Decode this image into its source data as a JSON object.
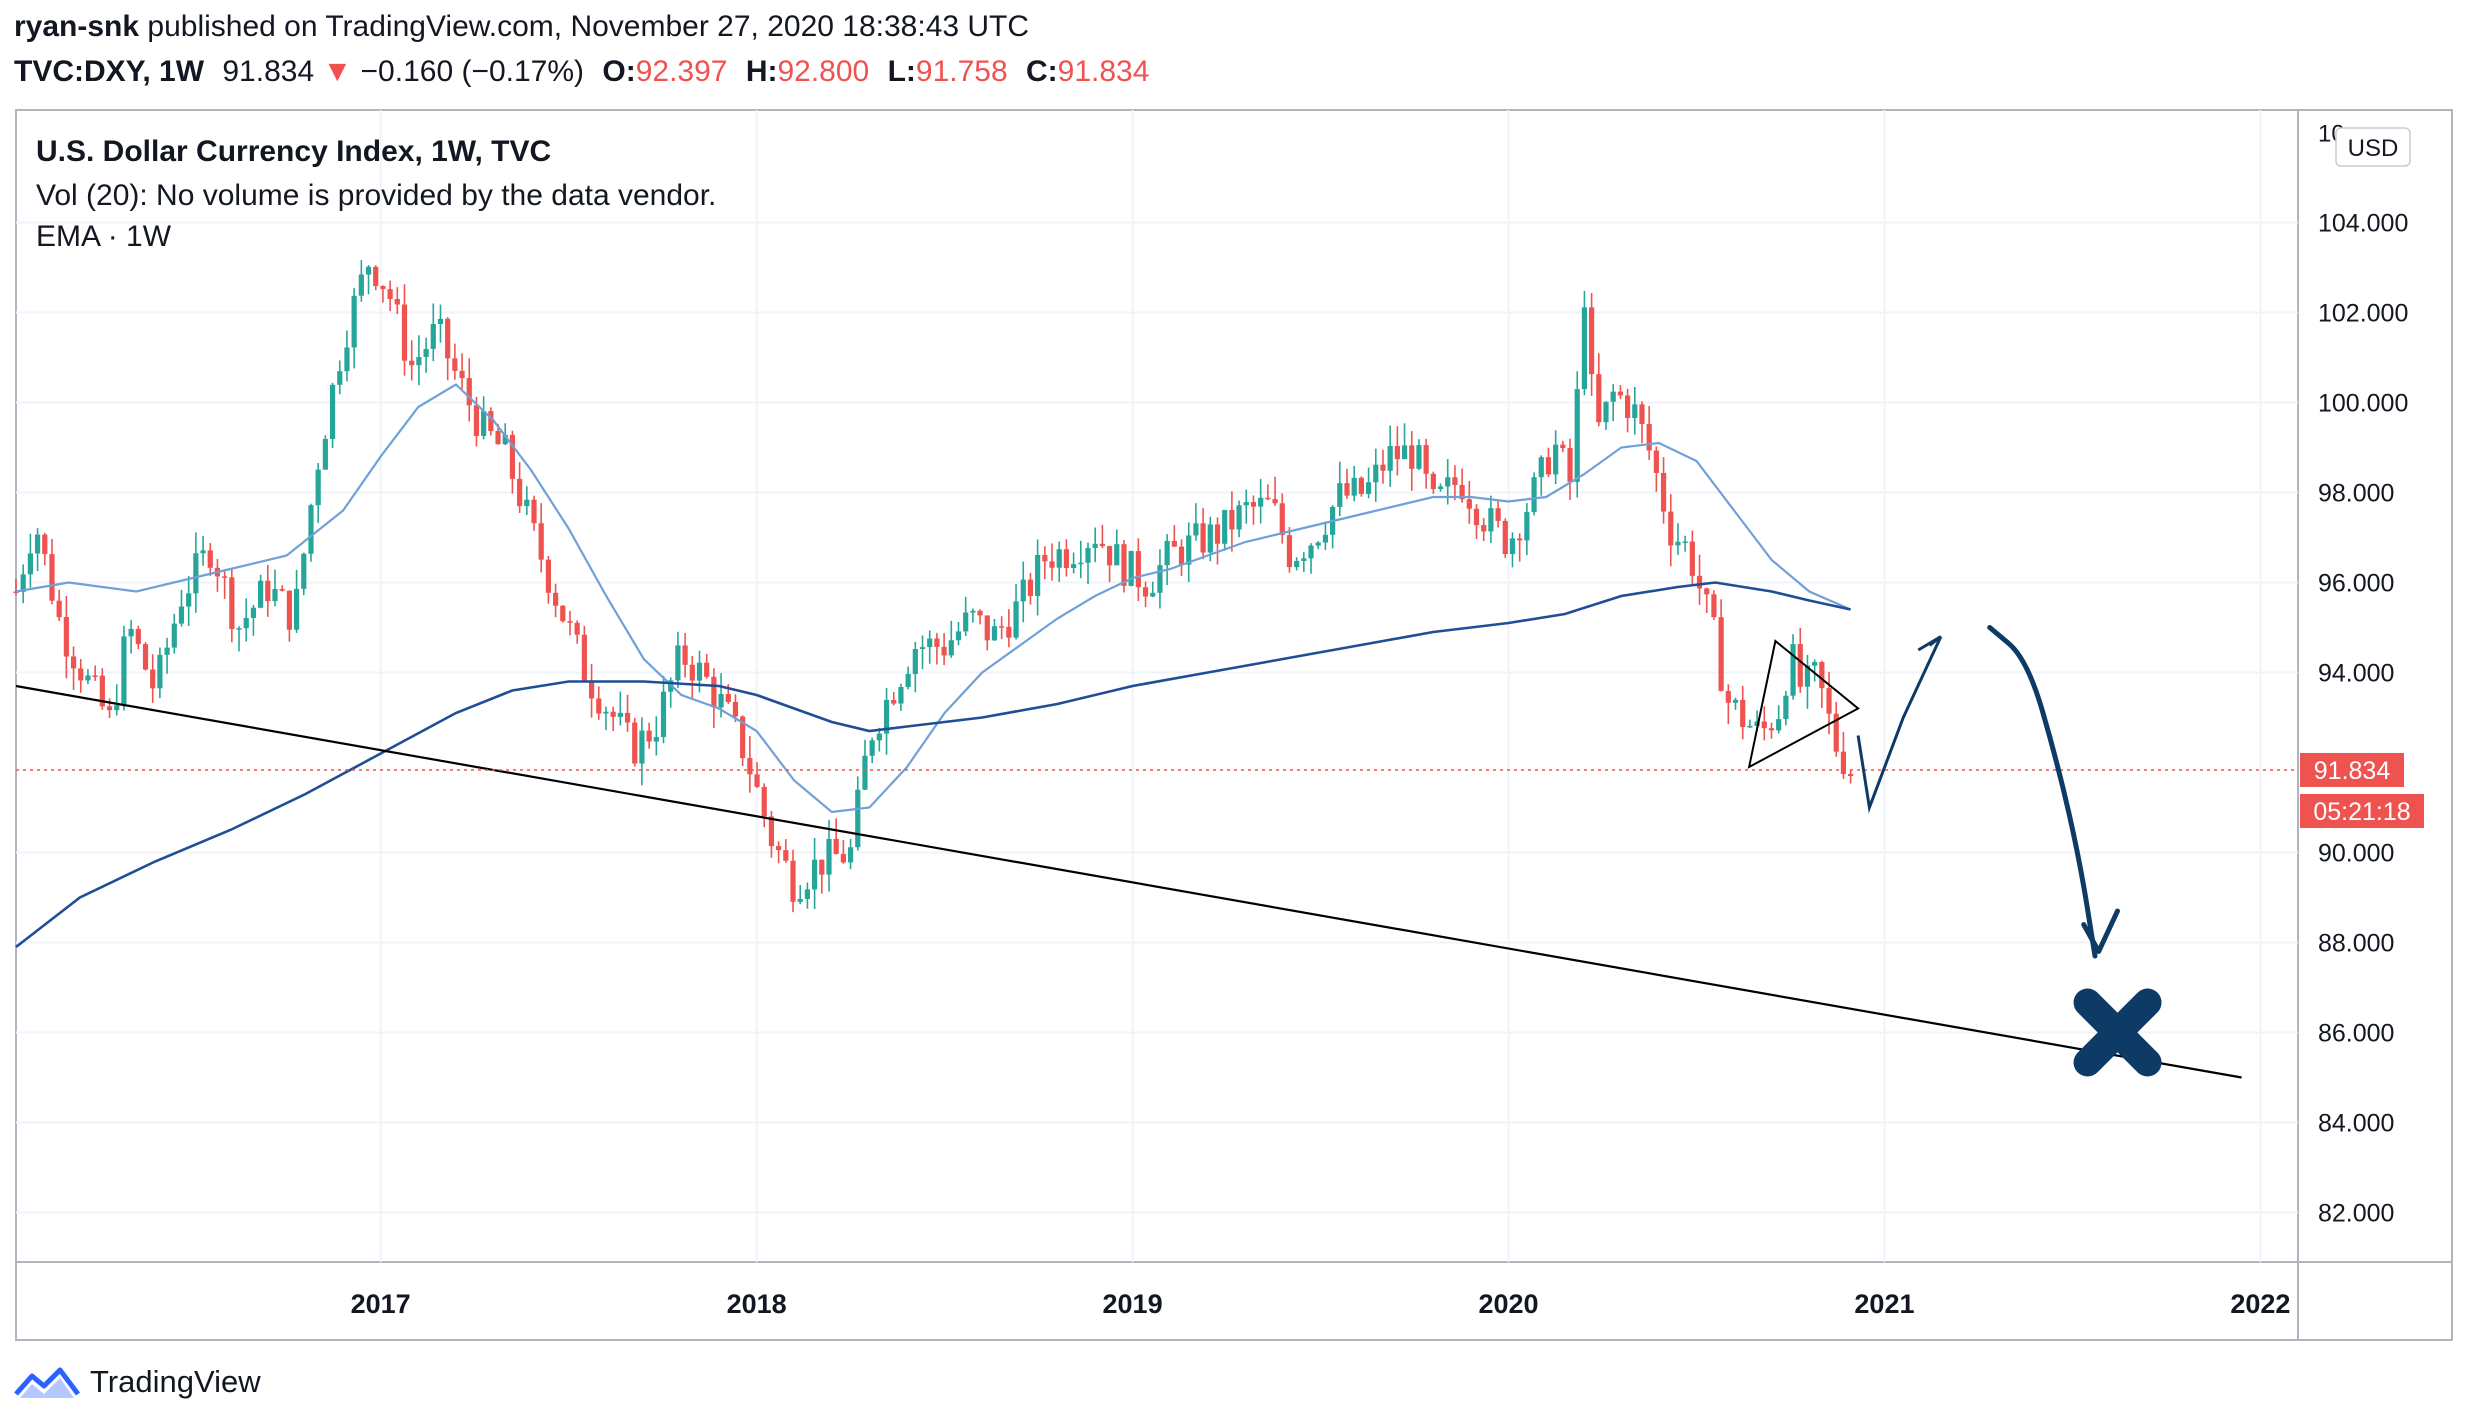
{
  "header": {
    "author": "ryan-snk",
    "published_text": "published on TradingView.com, November 27, 2020 18:38:43 UTC",
    "symbol": "TVC:DXY, 1W",
    "last": "91.834",
    "change_arrow": "▼",
    "change": "−0.160 (−0.17%)",
    "o_label": "O:",
    "o": "92.397",
    "h_label": "H:",
    "h": "92.800",
    "l_label": "L:",
    "l": "91.758",
    "c_label": "C:",
    "c": "91.834"
  },
  "legend": {
    "title": "U.S. Dollar Currency Index, 1W, TVC",
    "volume": "Vol (20): No volume is provided by the data vendor.",
    "ema": "EMA · 1W"
  },
  "currency_button": "USD",
  "footer": {
    "brand": "TradingView"
  },
  "colors": {
    "up": "#26a69a",
    "down": "#ef5350",
    "ema_fast": "#6fa1d8",
    "ema_slow": "#1f4e96",
    "drawing": "#0d3b66",
    "trendline": "#000000",
    "accent": "#ef5350"
  },
  "chart_data": {
    "type": "candlestick",
    "title": "U.S. Dollar Currency Index, 1W, TVC",
    "x_ticks": [
      "2017",
      "2018",
      "2019",
      "2020",
      "2021",
      "2022"
    ],
    "y_ticks": [
      "82.000",
      "84.000",
      "86.000",
      "88.000",
      "90.000",
      "94.000",
      "96.000",
      "98.000",
      "100.000",
      "102.000",
      "104.000"
    ],
    "y_tick_cut": "10",
    "ylim": [
      80.9,
      106.5
    ],
    "xlim": [
      2016.03,
      2022.1
    ],
    "last_price_label": "91.834",
    "countdown_label": "05:21:18",
    "price_path": [
      [
        2016.03,
        95.8
      ],
      [
        2016.08,
        97.4
      ],
      [
        2016.15,
        95.0
      ],
      [
        2016.22,
        93.8
      ],
      [
        2016.28,
        92.9
      ],
      [
        2016.33,
        95.0
      ],
      [
        2016.4,
        93.6
      ],
      [
        2016.47,
        95.7
      ],
      [
        2016.55,
        96.8
      ],
      [
        2016.62,
        95.0
      ],
      [
        2016.7,
        95.9
      ],
      [
        2016.77,
        95.2
      ],
      [
        2016.83,
        98.6
      ],
      [
        2016.9,
        101.4
      ],
      [
        2016.97,
        103.2
      ],
      [
        2017.02,
        102.5
      ],
      [
        2017.08,
        100.8
      ],
      [
        2017.15,
        101.6
      ],
      [
        2017.2,
        100.6
      ],
      [
        2017.27,
        99.4
      ],
      [
        2017.33,
        98.9
      ],
      [
        2017.4,
        97.2
      ],
      [
        2017.47,
        95.6
      ],
      [
        2017.55,
        93.9
      ],
      [
        2017.62,
        93.0
      ],
      [
        2017.67,
        92.3
      ],
      [
        2017.73,
        92.8
      ],
      [
        2017.8,
        94.4
      ],
      [
        2017.86,
        93.9
      ],
      [
        2017.92,
        93.1
      ],
      [
        2017.97,
        92.2
      ],
      [
        2018.04,
        90.3
      ],
      [
        2018.1,
        89.3
      ],
      [
        2018.17,
        89.8
      ],
      [
        2018.25,
        90.0
      ],
      [
        2018.3,
        92.6
      ],
      [
        2018.36,
        93.6
      ],
      [
        2018.42,
        94.6
      ],
      [
        2018.5,
        94.6
      ],
      [
        2018.57,
        95.2
      ],
      [
        2018.63,
        94.8
      ],
      [
        2018.7,
        95.5
      ],
      [
        2018.77,
        96.6
      ],
      [
        2018.83,
        96.7
      ],
      [
        2018.9,
        97.1
      ],
      [
        2018.97,
        96.4
      ],
      [
        2019.04,
        96.0
      ],
      [
        2019.1,
        96.6
      ],
      [
        2019.17,
        96.9
      ],
      [
        2019.23,
        97.1
      ],
      [
        2019.3,
        97.6
      ],
      [
        2019.37,
        97.7
      ],
      [
        2019.42,
        96.6
      ],
      [
        2019.48,
        97.0
      ],
      [
        2019.55,
        97.9
      ],
      [
        2019.62,
        98.0
      ],
      [
        2019.68,
        98.8
      ],
      [
        2019.75,
        98.9
      ],
      [
        2019.8,
        97.7
      ],
      [
        2019.87,
        98.3
      ],
      [
        2019.94,
        97.4
      ],
      [
        2020.0,
        96.9
      ],
      [
        2020.08,
        98.2
      ],
      [
        2020.12,
        99.1
      ],
      [
        2020.17,
        98.1
      ],
      [
        2020.2,
        102.7
      ],
      [
        2020.23,
        99.2
      ],
      [
        2020.28,
        100.2
      ],
      [
        2020.33,
        99.9
      ],
      [
        2020.38,
        98.8
      ],
      [
        2020.43,
        97.2
      ],
      [
        2020.48,
        96.7
      ],
      [
        2020.55,
        94.7
      ],
      [
        2020.58,
        93.4
      ],
      [
        2020.62,
        93.0
      ],
      [
        2020.67,
        92.6
      ],
      [
        2020.72,
        93.2
      ],
      [
        2020.75,
        94.4
      ],
      [
        2020.78,
        93.6
      ],
      [
        2020.82,
        93.9
      ],
      [
        2020.87,
        92.4
      ],
      [
        2020.91,
        91.834
      ]
    ],
    "series": [
      {
        "name": "EMA fast",
        "points": [
          [
            2016.03,
            95.8
          ],
          [
            2016.17,
            96.0
          ],
          [
            2016.35,
            95.8
          ],
          [
            2016.55,
            96.2
          ],
          [
            2016.75,
            96.6
          ],
          [
            2016.9,
            97.6
          ],
          [
            2017.0,
            98.8
          ],
          [
            2017.1,
            99.9
          ],
          [
            2017.2,
            100.4
          ],
          [
            2017.3,
            99.6
          ],
          [
            2017.4,
            98.5
          ],
          [
            2017.5,
            97.2
          ],
          [
            2017.6,
            95.7
          ],
          [
            2017.7,
            94.3
          ],
          [
            2017.8,
            93.5
          ],
          [
            2017.9,
            93.2
          ],
          [
            2018.0,
            92.7
          ],
          [
            2018.1,
            91.6
          ],
          [
            2018.2,
            90.9
          ],
          [
            2018.3,
            91.0
          ],
          [
            2018.4,
            91.9
          ],
          [
            2018.5,
            93.1
          ],
          [
            2018.6,
            94.0
          ],
          [
            2018.7,
            94.6
          ],
          [
            2018.8,
            95.2
          ],
          [
            2018.9,
            95.7
          ],
          [
            2019.0,
            96.1
          ],
          [
            2019.1,
            96.3
          ],
          [
            2019.2,
            96.6
          ],
          [
            2019.3,
            96.9
          ],
          [
            2019.4,
            97.1
          ],
          [
            2019.5,
            97.3
          ],
          [
            2019.6,
            97.5
          ],
          [
            2019.7,
            97.7
          ],
          [
            2019.8,
            97.9
          ],
          [
            2019.9,
            97.9
          ],
          [
            2020.0,
            97.8
          ],
          [
            2020.1,
            97.9
          ],
          [
            2020.2,
            98.4
          ],
          [
            2020.3,
            99.0
          ],
          [
            2020.4,
            99.1
          ],
          [
            2020.5,
            98.7
          ],
          [
            2020.6,
            97.6
          ],
          [
            2020.7,
            96.5
          ],
          [
            2020.8,
            95.8
          ],
          [
            2020.91,
            95.4
          ]
        ]
      },
      {
        "name": "EMA slow",
        "points": [
          [
            2016.03,
            87.9
          ],
          [
            2016.2,
            89.0
          ],
          [
            2016.4,
            89.8
          ],
          [
            2016.6,
            90.5
          ],
          [
            2016.8,
            91.3
          ],
          [
            2017.0,
            92.2
          ],
          [
            2017.2,
            93.1
          ],
          [
            2017.35,
            93.6
          ],
          [
            2017.5,
            93.8
          ],
          [
            2017.7,
            93.8
          ],
          [
            2017.9,
            93.7
          ],
          [
            2018.0,
            93.5
          ],
          [
            2018.1,
            93.2
          ],
          [
            2018.2,
            92.9
          ],
          [
            2018.3,
            92.7
          ],
          [
            2018.4,
            92.8
          ],
          [
            2018.5,
            92.9
          ],
          [
            2018.6,
            93.0
          ],
          [
            2018.8,
            93.3
          ],
          [
            2019.0,
            93.7
          ],
          [
            2019.2,
            94.0
          ],
          [
            2019.4,
            94.3
          ],
          [
            2019.6,
            94.6
          ],
          [
            2019.8,
            94.9
          ],
          [
            2020.0,
            95.1
          ],
          [
            2020.15,
            95.3
          ],
          [
            2020.3,
            95.7
          ],
          [
            2020.45,
            95.9
          ],
          [
            2020.55,
            96.0
          ],
          [
            2020.7,
            95.8
          ],
          [
            2020.8,
            95.6
          ],
          [
            2020.91,
            95.4
          ]
        ]
      }
    ],
    "trendline": [
      [
        2016.03,
        93.7
      ],
      [
        2021.95,
        85.0
      ]
    ],
    "triangle": [
      [
        2020.71,
        94.7
      ],
      [
        2020.93,
        93.2
      ],
      [
        2020.64,
        91.9
      ]
    ],
    "zigzag": [
      [
        2020.93,
        92.6
      ],
      [
        2020.96,
        91.0
      ],
      [
        2021.05,
        93.0
      ],
      [
        2021.15,
        94.8
      ]
    ],
    "arrow_flag": [
      [
        2021.12,
        94.6
      ],
      [
        2021.15,
        94.8
      ],
      [
        2021.09,
        94.5
      ]
    ],
    "curve_arrow": [
      [
        2021.28,
        95.0
      ],
      [
        2021.38,
        94.3
      ],
      [
        2021.46,
        92.0
      ],
      [
        2021.52,
        89.8
      ],
      [
        2021.56,
        87.7
      ]
    ],
    "arrow_head": [
      [
        2021.53,
        88.4
      ],
      [
        2021.57,
        87.8
      ],
      [
        2021.62,
        88.7
      ]
    ],
    "x_mark": {
      "x": 2021.62,
      "y": 86.0
    }
  }
}
